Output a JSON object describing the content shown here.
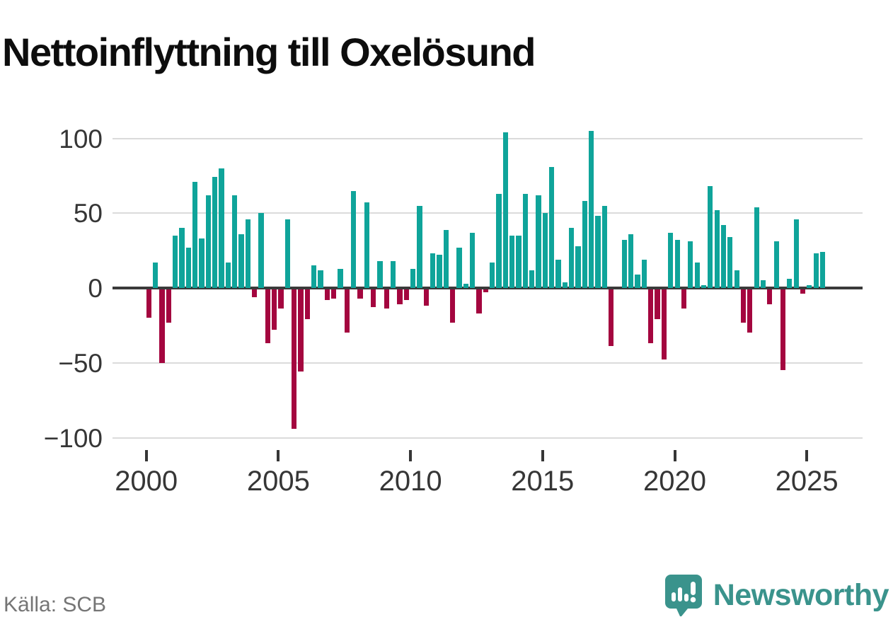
{
  "title": "Nettoinflyttning till Oxelösund",
  "source": "Källa: SCB",
  "brand": {
    "name": "Newsworthy"
  },
  "colors": {
    "positive": "#0fa49a",
    "negative": "#a4063f",
    "grid": "#dbdbdb",
    "axis": "#3a3a3a",
    "tick_text": "#363636",
    "source_text": "#757575",
    "brand_teal": "#3a938c"
  },
  "chart_data": {
    "type": "bar",
    "title": "Nettoinflyttning till Oxelösund",
    "x_unit": "quarter",
    "start_year": 2000,
    "start_quarter": 1,
    "xticks": [
      2000,
      2005,
      2010,
      2015,
      2020,
      2025
    ],
    "yticks": [
      100,
      50,
      0,
      -50,
      -100
    ],
    "ylim": [
      -112,
      120
    ],
    "grid": true,
    "legend": "none",
    "values": [
      -19,
      17,
      -49,
      -22,
      35,
      40,
      27,
      71,
      33,
      62,
      74,
      80,
      17,
      62,
      36,
      46,
      -5,
      50,
      -36,
      -27,
      -13,
      46,
      -93,
      -55,
      -20,
      15,
      12,
      -7,
      -6,
      13,
      -29,
      65,
      -6,
      57,
      -12,
      18,
      -13,
      18,
      -10,
      -7,
      13,
      55,
      -11,
      23,
      22,
      39,
      -22,
      27,
      3,
      37,
      -16,
      -2,
      17,
      63,
      104,
      35,
      35,
      63,
      12,
      62,
      50,
      81,
      19,
      4,
      40,
      28,
      58,
      105,
      48,
      55,
      -38,
      0,
      32,
      36,
      9,
      19,
      -36,
      -20,
      -47,
      37,
      32,
      -13,
      31,
      17,
      2,
      68,
      52,
      42,
      34,
      12,
      -22,
      -29,
      54,
      5,
      -10,
      31,
      -54,
      6,
      46,
      -3,
      2,
      23,
      24
    ]
  }
}
